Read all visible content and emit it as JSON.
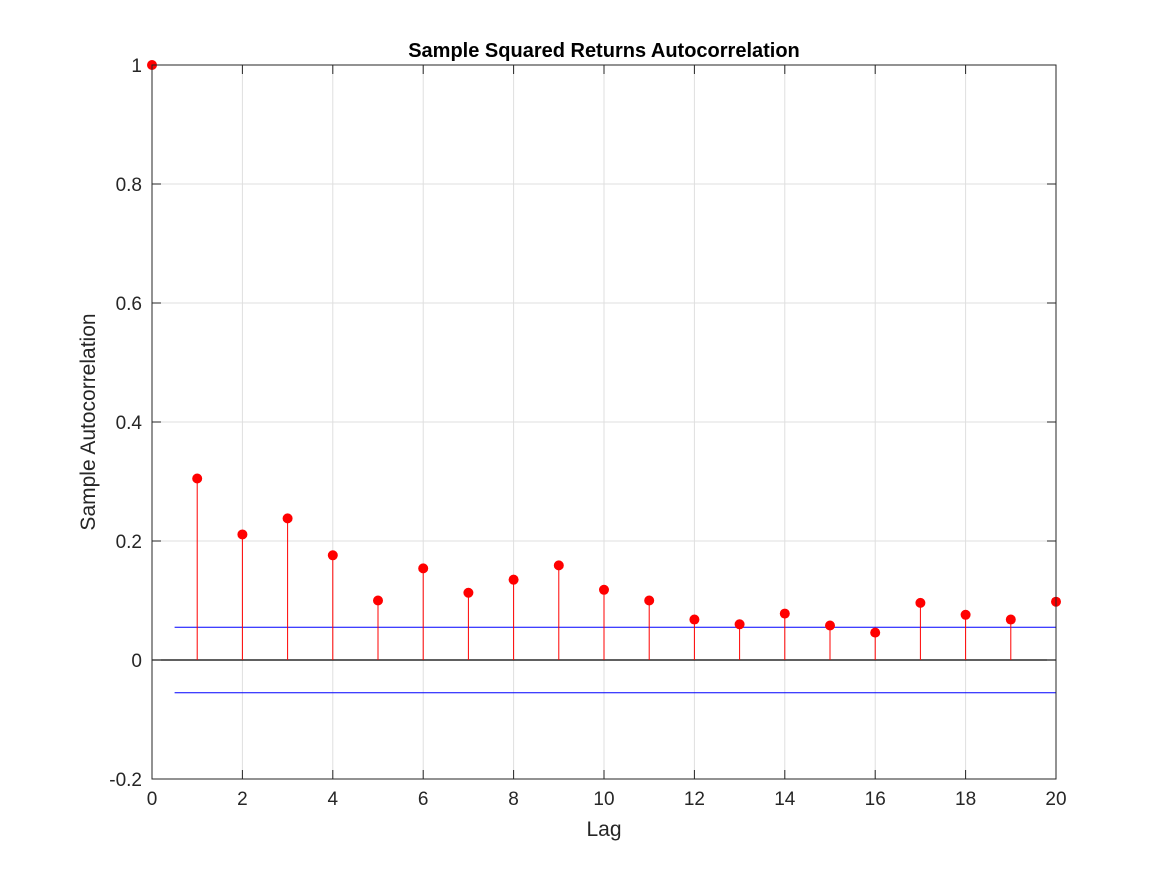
{
  "chart_data": {
    "type": "stem",
    "title": "Sample Squared Returns Autocorrelation",
    "xlabel": "Lag",
    "ylabel": "Sample Autocorrelation",
    "xlim": [
      0,
      20
    ],
    "ylim": [
      -0.2,
      1
    ],
    "x_ticks": [
      "0",
      "2",
      "4",
      "6",
      "8",
      "10",
      "12",
      "14",
      "16",
      "18",
      "20"
    ],
    "y_ticks": [
      "-0.2",
      "0",
      "0.2",
      "0.4",
      "0.6",
      "0.8",
      "1"
    ],
    "grid": true,
    "x": [
      0,
      1,
      2,
      3,
      4,
      5,
      6,
      7,
      8,
      9,
      10,
      11,
      12,
      13,
      14,
      15,
      16,
      17,
      18,
      19,
      20
    ],
    "values": [
      1.0,
      0.305,
      0.211,
      0.238,
      0.176,
      0.1,
      0.154,
      0.113,
      0.135,
      0.159,
      0.118,
      0.1,
      0.068,
      0.06,
      0.078,
      0.058,
      0.046,
      0.096,
      0.076,
      0.068,
      0.098
    ],
    "confidence_bounds": [
      0.055,
      -0.055
    ],
    "bounds_x_range": [
      0.5,
      20
    ],
    "colors": {
      "stem": "#ff0000",
      "bounds": "#0000ff",
      "zero_line": "#000000",
      "grid": "#dfdfdf"
    }
  }
}
